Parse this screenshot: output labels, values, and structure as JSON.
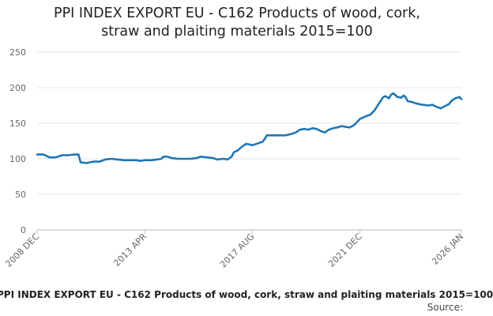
{
  "chart_data": {
    "type": "line",
    "title_lines": [
      "PPI INDEX EXPORT EU - C162 Products of wood, cork,",
      "straw and plaiting materials 2015=100"
    ],
    "caption": "PPI INDEX EXPORT EU - C162 Products of wood, cork, straw and plaiting materials 2015=100",
    "source_label": "Source:",
    "ylim": [
      0,
      250
    ],
    "yticks": [
      "0",
      "50",
      "100",
      "150",
      "200",
      "250"
    ],
    "xticks": [
      {
        "label": "2008 DEC",
        "x": "2008-12"
      },
      {
        "label": "2013 APR",
        "x": "2013-04"
      },
      {
        "label": "2017 AUG",
        "x": "2017-08"
      },
      {
        "label": "2021 DEC",
        "x": "2021-12"
      },
      {
        "label": "2026 JAN",
        "x": "2026-01"
      }
    ],
    "grid": true,
    "line_color": "#1f77b4",
    "series": [
      {
        "points": [
          [
            "2008-12",
            106
          ],
          [
            "2009-03",
            106
          ],
          [
            "2009-06",
            102
          ],
          [
            "2009-09",
            102
          ],
          [
            "2009-12",
            105
          ],
          [
            "2010-03",
            105
          ],
          [
            "2010-06",
            106
          ],
          [
            "2010-08",
            106
          ],
          [
            "2010-09",
            95
          ],
          [
            "2010-12",
            94
          ],
          [
            "2011-03",
            96
          ],
          [
            "2011-06",
            96
          ],
          [
            "2011-09",
            99
          ],
          [
            "2011-12",
            100
          ],
          [
            "2012-03",
            99
          ],
          [
            "2012-06",
            98
          ],
          [
            "2012-09",
            98
          ],
          [
            "2012-12",
            98
          ],
          [
            "2013-02",
            97
          ],
          [
            "2013-04",
            98
          ],
          [
            "2013-07",
            98
          ],
          [
            "2013-10",
            99
          ],
          [
            "2013-12",
            100
          ],
          [
            "2014-01",
            103
          ],
          [
            "2014-03",
            103
          ],
          [
            "2014-05",
            101
          ],
          [
            "2014-08",
            100
          ],
          [
            "2014-11",
            100
          ],
          [
            "2015-02",
            100
          ],
          [
            "2015-05",
            101
          ],
          [
            "2015-07",
            103
          ],
          [
            "2015-10",
            102
          ],
          [
            "2016-01",
            101
          ],
          [
            "2016-03",
            99
          ],
          [
            "2016-06",
            100
          ],
          [
            "2016-08",
            99
          ],
          [
            "2016-10",
            103
          ],
          [
            "2016-11",
            109
          ],
          [
            "2017-01",
            112
          ],
          [
            "2017-03",
            117
          ],
          [
            "2017-05",
            121
          ],
          [
            "2017-07",
            120
          ],
          [
            "2017-08",
            119
          ],
          [
            "2017-11",
            122
          ],
          [
            "2018-01",
            124
          ],
          [
            "2018-02",
            128
          ],
          [
            "2018-03",
            133
          ],
          [
            "2018-06",
            133
          ],
          [
            "2018-09",
            133
          ],
          [
            "2018-12",
            133
          ],
          [
            "2019-03",
            135
          ],
          [
            "2019-05",
            137
          ],
          [
            "2019-07",
            141
          ],
          [
            "2019-09",
            142
          ],
          [
            "2019-11",
            141
          ],
          [
            "2020-01",
            143
          ],
          [
            "2020-03",
            142
          ],
          [
            "2020-05",
            139
          ],
          [
            "2020-07",
            137
          ],
          [
            "2020-09",
            141
          ],
          [
            "2020-11",
            143
          ],
          [
            "2021-01",
            144
          ],
          [
            "2021-03",
            146
          ],
          [
            "2021-05",
            145
          ],
          [
            "2021-07",
            144
          ],
          [
            "2021-09",
            147
          ],
          [
            "2021-12",
            156
          ],
          [
            "2022-03",
            160
          ],
          [
            "2022-05",
            162
          ],
          [
            "2022-07",
            168
          ],
          [
            "2022-09",
            177
          ],
          [
            "2022-11",
            186
          ],
          [
            "2022-12",
            188
          ],
          [
            "2023-01",
            187
          ],
          [
            "2023-02",
            185
          ],
          [
            "2023-03",
            190
          ],
          [
            "2023-04",
            192
          ],
          [
            "2023-05",
            190
          ],
          [
            "2023-06",
            187
          ],
          [
            "2023-08",
            186
          ],
          [
            "2023-09",
            189
          ],
          [
            "2023-10",
            187
          ],
          [
            "2023-11",
            181
          ],
          [
            "2024-01",
            180
          ],
          [
            "2024-03",
            178
          ],
          [
            "2024-06",
            176
          ],
          [
            "2024-09",
            175
          ],
          [
            "2024-11",
            176
          ],
          [
            "2025-01",
            173
          ],
          [
            "2025-03",
            171
          ],
          [
            "2025-05",
            174
          ],
          [
            "2025-07",
            177
          ],
          [
            "2025-08",
            181
          ],
          [
            "2025-10",
            185
          ],
          [
            "2025-12",
            187
          ],
          [
            "2026-01",
            184
          ]
        ]
      }
    ]
  }
}
